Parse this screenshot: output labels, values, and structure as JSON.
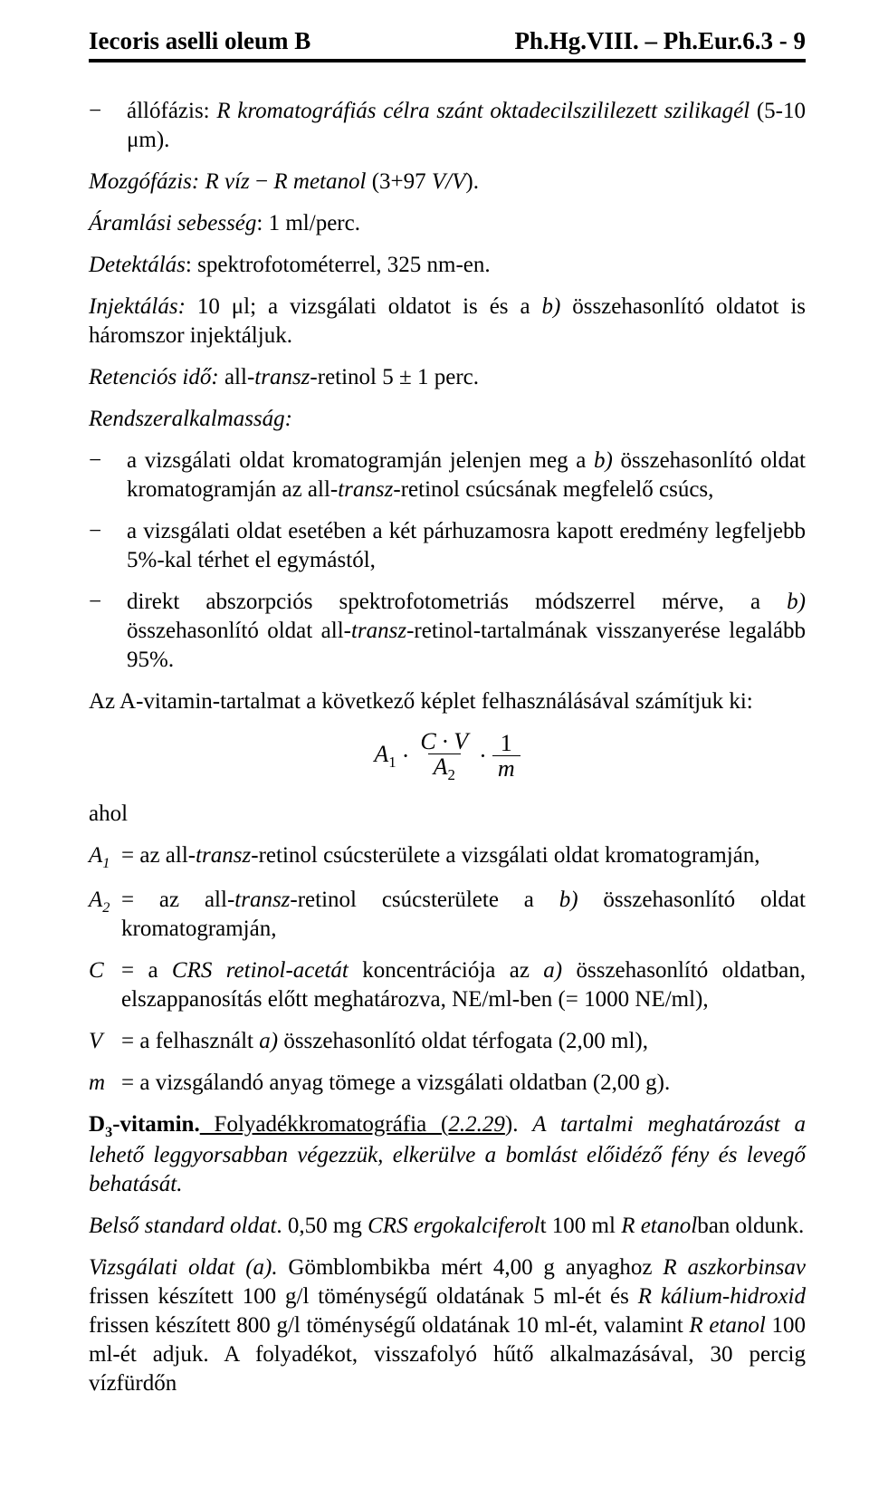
{
  "header": {
    "left": "Iecoris aselli oleum B",
    "right": "Ph.Hg.VIII. – Ph.Eur.6.3 - 9"
  },
  "paragraphs": {
    "l1a": "állófázis: ",
    "l1b": "R kromatográfiás célra szánt oktadecilszililezett szilikagél",
    "l1c": " (5-10 μm).",
    "l2a": "Mozgófázis:",
    "l2b": " R víz ",
    "l2b2": " R metanol ",
    "l2c": "(3+97 ",
    "l2d": "V/V",
    "l2e": ").",
    "l3a": "Áramlási sebesség",
    "l3b": ": 1 ml/perc.",
    "l4a": "Detektálás",
    "l4b": ": spektrofotométerrel, 325 nm-en.",
    "l5a": "Injektálás:",
    "l5b": " 10 μl; a vizsgálati oldatot is és a ",
    "l5c": "b)",
    "l5d": " összehasonlító oldatot is háromszor injektáljuk.",
    "l6a": "Retenciós idő:",
    "l6b": " all-",
    "l6c": "transz",
    "l6d": "-retinol 5 ± 1 perc.",
    "l7": "Rendszeralkalmasság:",
    "b1a": "a vizsgálati oldat kromatogramján jelenjen meg a ",
    "b1b": "b)",
    "b1c": " összehasonlító oldat kromatogramján az all-",
    "b1d": "transz",
    "b1e": "-retinol csúcsának megfelelő csúcs,",
    "b2": "a vizsgálati oldat esetében a két párhuzamosra kapott eredmény legfeljebb 5%-kal térhet el egymástól,",
    "b3a": "direkt abszorpciós spektrofotometriás módszerrel mérve, a ",
    "b3b": "b)",
    "b3c": " összehasonlító oldat all-",
    "b3d": "transz",
    "b3e": "-retinol-tartalmának visszanyerése legalább 95%.",
    "calc": "Az A-vitamin-tartalmat a következő képlet felhasználásával számítjuk ki:",
    "ahol": "ahol",
    "f_A1": "A",
    "f_A1s": "1",
    "f_dot": "·",
    "f_CV": "C · V",
    "f_A2": "A",
    "f_A2s": "2",
    "f_one": "1",
    "f_m": "m",
    "dA1s": "A",
    "dA1sub": "1",
    "dA1e": "= az all-",
    "dA1t": "transz",
    "dA1r": "-retinol csúcsterülete a vizsgálati oldat kromatogramján,",
    "dA2s": "A",
    "dA2sub": "2",
    "dA2a": "= az all-",
    "dA2b": "transz",
    "dA2c": "-retinol csúcsterülete a ",
    "dA2d": "b)",
    "dA2e": " összehasonlító oldat kromatogramján,",
    "dCs": "C",
    "dCa": "= a ",
    "dCb": "CRS retinol-acetát",
    "dCc": " koncentrációja az ",
    "dCd": "a)",
    "dCe": " összehasonlító oldatban, elszappanosítás előtt meghatározva, NE/ml-ben (= 1000 NE/ml),",
    "dVs": "V",
    "dVa": "= a felhasznált ",
    "dVb": "a)",
    "dVc": " összehasonlító oldat térfogata (2,00 ml),",
    "dms": "m",
    "dma": "= a vizsgálandó anyag tömege a vizsgálati oldatban (2,00 g).",
    "d3a": "D",
    "d3b": "3",
    "d3c": "-vitamin.",
    "d3d": " Folyadékkromatográfia (",
    "d3e": "2.2.29",
    "d3f": "). ",
    "d3g": "A tartalmi meghatározást a lehető leggyorsabban végezzük, elkerülve a bomlást előidéző fény és levegő behatását.",
    "bsa": "Belső standard oldat",
    "bsb": ". 0,50 mg ",
    "bsc": "CRS ergokalciferol",
    "bsd": "t 100 ml ",
    "bse": "R etanol",
    "bsf": "ban oldunk.",
    "voa": "Vizsgálati oldat (a).",
    "vob": " Gömblombikba mért 4,00 g anyaghoz ",
    "voc": "R aszkorbinsav",
    "vod": " frissen készített 100 g/l töménységű oldatának 5 ml-ét és ",
    "voe": "R kálium-hidroxid",
    "vof": " frissen készített 800 g/l töménységű oldatának 10 ml-ét, valamint ",
    "vog": "R etanol",
    "voh": " 100 ml-ét adjuk. A folyadékot, visszafolyó hűtő alkalmazásával, 30 percig vízfürdőn"
  }
}
